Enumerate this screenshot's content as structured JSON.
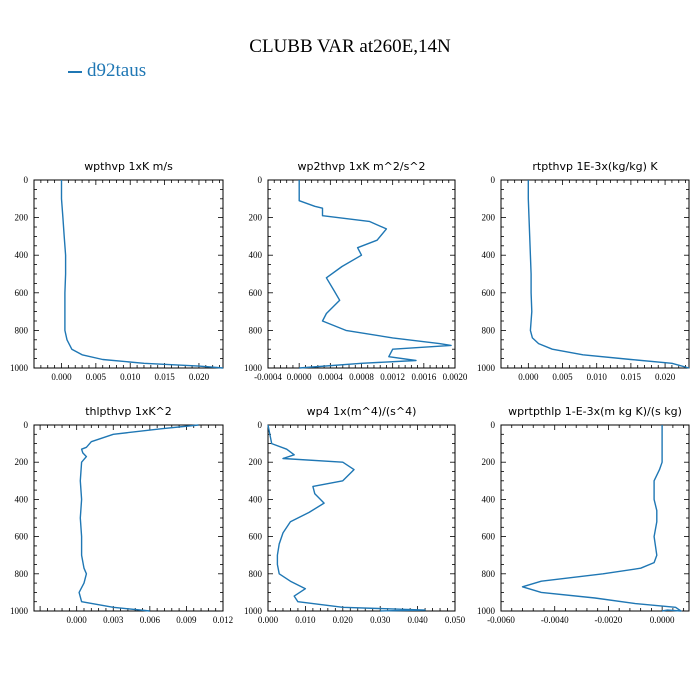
{
  "figure": {
    "title": "CLUBB VAR at260E,14N",
    "legend": [
      {
        "name": "d92taus",
        "color": "#1f77b4"
      }
    ]
  },
  "chart_data": [
    {
      "type": "line",
      "title": "wpthvp  1xK m/s",
      "xlim": [
        -0.004,
        0.0235
      ],
      "ylim": [
        1000,
        0
      ],
      "xticks": [
        "0.000",
        "0.005",
        "0.010",
        "0.015",
        "0.020"
      ],
      "xtick_values": [
        0,
        0.005,
        0.01,
        0.015,
        0.02
      ],
      "yticks": [
        "0",
        "200",
        "400",
        "600",
        "800",
        "1000"
      ],
      "series": [
        {
          "x": [
            0,
            0,
            0.0002,
            0.0004,
            0.0006,
            0.0006,
            0.0005,
            0.0005,
            0.0005,
            0.0008,
            0.0015,
            0.003,
            0.006,
            0.012,
            0.02,
            0.0235
          ],
          "y": [
            0,
            100,
            200,
            300,
            400,
            500,
            600,
            700,
            800,
            850,
            900,
            930,
            955,
            975,
            990,
            1000
          ]
        }
      ]
    },
    {
      "type": "line",
      "title": "wp2thvp  1xK m^2/s^2",
      "xlim": [
        -0.0004,
        0.002
      ],
      "ylim": [
        1000,
        0
      ],
      "xticks": [
        "-0.0004",
        "0.0000",
        "0.0004",
        "0.0008",
        "0.0012",
        "0.0016",
        "0.0020"
      ],
      "xtick_values": [
        -0.0004,
        0,
        0.0004,
        0.0008,
        0.0012,
        0.0016,
        0.002
      ],
      "yticks": [
        "0",
        "200",
        "400",
        "600",
        "800",
        "1000"
      ],
      "series": [
        {
          "x": [
            0,
            0,
            0.0002,
            0.0003,
            0.0003,
            0.0009,
            0.00112,
            0.001,
            0.00075,
            0.0008,
            0.00055,
            0.00035,
            0.00045,
            0.00052,
            0.00035,
            0.0003,
            0.0006,
            0.0012,
            0.0018,
            0.00195,
            0.0012,
            0.00115,
            0.0015,
            0.0008,
            0
          ],
          "y": [
            0,
            110,
            140,
            150,
            190,
            220,
            260,
            320,
            360,
            400,
            460,
            520,
            590,
            640,
            710,
            750,
            800,
            840,
            870,
            880,
            900,
            940,
            960,
            975,
            1000
          ]
        }
      ]
    },
    {
      "type": "line",
      "title": "rtpthvp  1E-3x(kg/kg) K",
      "xlim": [
        -0.004,
        0.0235
      ],
      "ylim": [
        1000,
        0
      ],
      "xticks": [
        "0.000",
        "0.005",
        "0.010",
        "0.015",
        "0.020"
      ],
      "xtick_values": [
        0,
        0.005,
        0.01,
        0.015,
        0.02
      ],
      "yticks": [
        "0",
        "200",
        "400",
        "600",
        "800",
        "1000"
      ],
      "series": [
        {
          "x": [
            0,
            0,
            0.0001,
            0.0002,
            0.0003,
            0.0004,
            0.0004,
            0.0005,
            0.0003,
            0.0006,
            0.0015,
            0.0035,
            0.008,
            0.015,
            0.021,
            0.0235
          ],
          "y": [
            0,
            100,
            200,
            300,
            400,
            500,
            600,
            700,
            800,
            840,
            870,
            900,
            930,
            955,
            975,
            1000
          ]
        }
      ]
    },
    {
      "type": "line",
      "title": "thlpthvp  1xK^2",
      "xlim": [
        -0.0035,
        0.012
      ],
      "ylim": [
        1000,
        0
      ],
      "xticks": [
        "0.000",
        "0.003",
        "0.006",
        "0.009",
        "0.012"
      ],
      "xtick_values": [
        0,
        0.003,
        0.006,
        0.009,
        0.012
      ],
      "yticks": [
        "0",
        "200",
        "400",
        "600",
        "800",
        "1000"
      ],
      "series": [
        {
          "x": [
            0.01,
            0.007,
            0.003,
            0.0012,
            0.0008,
            0.0004,
            0.0005,
            0.0008,
            0.0004,
            0.0003,
            0.0004,
            0.0003,
            0.0004,
            0.0004,
            0.0006,
            0.0008,
            0.0006,
            0.0002,
            0.0004,
            0.003,
            0.006
          ],
          "y": [
            0,
            20,
            50,
            90,
            120,
            130,
            150,
            170,
            200,
            300,
            400,
            500,
            600,
            700,
            770,
            800,
            850,
            900,
            950,
            980,
            1000
          ]
        }
      ]
    },
    {
      "type": "line",
      "title": "wp4  1x(m^4)/(s^4)",
      "xlim": [
        0,
        0.05
      ],
      "ylim": [
        1000,
        0
      ],
      "xticks": [
        "0.000",
        "0.010",
        "0.020",
        "0.030",
        "0.040",
        "0.050"
      ],
      "xtick_values": [
        0,
        0.01,
        0.02,
        0.03,
        0.04,
        0.05
      ],
      "yticks": [
        "0",
        "200",
        "400",
        "600",
        "800",
        "1000"
      ],
      "series": [
        {
          "x": [
            0,
            0.001,
            0.005,
            0.007,
            0.004,
            0.02,
            0.023,
            0.02,
            0.012,
            0.0125,
            0.015,
            0.011,
            0.006,
            0.004,
            0.003,
            0.0025,
            0.0025,
            0.003,
            0.006,
            0.01,
            0.007,
            0.008,
            0.02,
            0.042,
            0.03
          ],
          "y": [
            0,
            100,
            130,
            160,
            180,
            200,
            240,
            300,
            330,
            370,
            420,
            470,
            520,
            580,
            640,
            700,
            750,
            800,
            840,
            880,
            920,
            950,
            980,
            995,
            1000
          ]
        }
      ]
    },
    {
      "type": "line",
      "title": "wprtpthlp  1-E-3x(m kg K)/(s kg)",
      "xlim": [
        -0.006,
        0.001
      ],
      "ylim": [
        1000,
        0
      ],
      "xticks": [
        "-0.0060",
        "-0.0040",
        "-0.0020",
        "0.0000"
      ],
      "xtick_values": [
        -0.006,
        -0.004,
        -0.002,
        0
      ],
      "yticks": [
        "0",
        "200",
        "400",
        "600",
        "800",
        "1000"
      ],
      "series": [
        {
          "x": [
            0,
            0,
            -0.0001,
            -0.0003,
            -0.0003,
            -0.0002,
            -0.0002,
            -0.0003,
            -0.0002,
            -0.0003,
            -0.0008,
            -0.0022,
            -0.0045,
            -0.0052,
            -0.0045,
            -0.0025,
            -0.001,
            0.0005,
            0.0007,
            0.0002,
            0
          ],
          "y": [
            0,
            200,
            240,
            300,
            400,
            460,
            520,
            600,
            700,
            740,
            770,
            800,
            840,
            870,
            900,
            930,
            960,
            980,
            1000,
            995,
            1000
          ]
        }
      ]
    }
  ]
}
